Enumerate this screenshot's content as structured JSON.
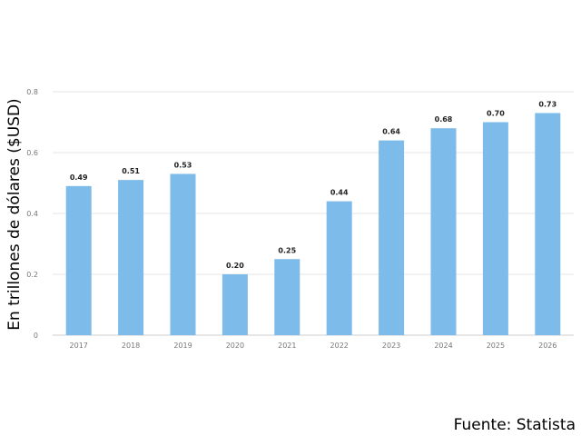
{
  "chart_data": {
    "type": "bar",
    "categories": [
      "2017",
      "2018",
      "2019",
      "2020",
      "2021",
      "2022",
      "2023",
      "2024",
      "2025",
      "2026"
    ],
    "values": [
      0.49,
      0.51,
      0.53,
      0.2,
      0.25,
      0.44,
      0.64,
      0.68,
      0.7,
      0.73
    ],
    "data_labels": [
      "0.49",
      "0.51",
      "0.53",
      "0.20",
      "0.25",
      "0.44",
      "0.64",
      "0.68",
      "0.70",
      "0.73"
    ],
    "title": "",
    "xlabel": "",
    "ylabel": "En trillones de dólares ($USD)",
    "ylim": [
      0,
      0.8
    ],
    "yticks": [
      0,
      0.2,
      0.4,
      0.6,
      0.8
    ],
    "ytick_labels": [
      "0",
      "0.2",
      "0.4",
      "0.6",
      "0.8"
    ],
    "grid": true,
    "legend": "none",
    "bar_color": "#7dbbea"
  },
  "source": "Fuente: Statista"
}
